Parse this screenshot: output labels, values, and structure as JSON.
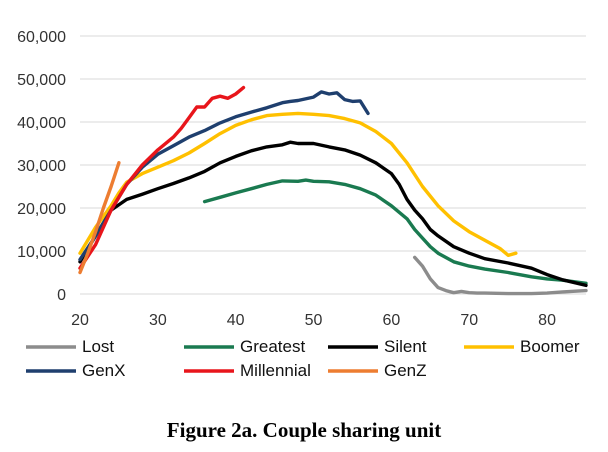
{
  "caption": "Figure 2a. Couple sharing unit",
  "chart_data": {
    "type": "line",
    "title": "",
    "xlabel": "",
    "ylabel": "",
    "xlim": [
      20,
      85
    ],
    "ylim": [
      0,
      60000
    ],
    "x_ticks": [
      "20",
      "30",
      "40",
      "50",
      "60",
      "70",
      "80"
    ],
    "y_ticks": [
      "0",
      "10,000",
      "20,000",
      "30,000",
      "40,000",
      "50,000",
      "60,000"
    ],
    "grid": "horizontal",
    "legend_position": "bottom",
    "series": [
      {
        "name": "Lost",
        "color": "#8c8c8c",
        "x": [
          63,
          64,
          65,
          66,
          67,
          68,
          69,
          70,
          71,
          72,
          75,
          78,
          80,
          82,
          85
        ],
        "y": [
          8500,
          6500,
          3500,
          1500,
          800,
          300,
          600,
          300,
          200,
          200,
          100,
          100,
          200,
          500,
          800
        ]
      },
      {
        "name": "Greatest",
        "color": "#1a7a50",
        "x": [
          36,
          38,
          40,
          42,
          44,
          46,
          48,
          49,
          50,
          52,
          54,
          56,
          58,
          60,
          62,
          63,
          64,
          65,
          66,
          68,
          70,
          72,
          75,
          78,
          80,
          82,
          85
        ],
        "y": [
          21500,
          22500,
          23500,
          24500,
          25500,
          26300,
          26200,
          26500,
          26200,
          26100,
          25500,
          24500,
          23000,
          20500,
          17500,
          15000,
          13000,
          11000,
          9500,
          7500,
          6500,
          5800,
          5000,
          4000,
          3500,
          3200,
          2500
        ]
      },
      {
        "name": "Silent",
        "color": "#000000",
        "x": [
          20,
          22,
          24,
          26,
          28,
          30,
          32,
          34,
          36,
          38,
          40,
          42,
          44,
          46,
          47,
          48,
          50,
          52,
          54,
          56,
          58,
          60,
          61,
          62,
          63,
          64,
          65,
          66,
          68,
          70,
          72,
          75,
          78,
          80,
          82,
          85
        ],
        "y": [
          7500,
          13500,
          19500,
          22000,
          23200,
          24500,
          25700,
          27000,
          28500,
          30500,
          32000,
          33300,
          34200,
          34700,
          35300,
          35000,
          35000,
          34200,
          33500,
          32300,
          30500,
          28000,
          25500,
          22000,
          19500,
          17500,
          15000,
          13500,
          11000,
          9500,
          8200,
          7200,
          6000,
          4500,
          3300,
          2000
        ]
      },
      {
        "name": "Boomer",
        "color": "#ffc000",
        "x": [
          20,
          22,
          24,
          25,
          26,
          28,
          30,
          32,
          34,
          36,
          38,
          40,
          42,
          44,
          46,
          48,
          50,
          52,
          54,
          56,
          58,
          60,
          62,
          64,
          66,
          68,
          70,
          72,
          74,
          75,
          76
        ],
        "y": [
          9500,
          15500,
          20500,
          23500,
          26000,
          28000,
          29500,
          31000,
          32800,
          35000,
          37300,
          39200,
          40500,
          41500,
          41800,
          42000,
          41800,
          41500,
          40800,
          39800,
          37800,
          35000,
          30500,
          25000,
          20500,
          17000,
          14500,
          12500,
          10500,
          9000,
          9500
        ]
      },
      {
        "name": "GenX",
        "color": "#1f3f6e",
        "x": [
          20,
          22,
          24,
          26,
          28,
          30,
          32,
          34,
          36,
          38,
          40,
          42,
          44,
          46,
          47,
          48,
          50,
          51,
          52,
          53,
          54,
          55,
          56,
          57
        ],
        "y": [
          8000,
          13500,
          19500,
          25500,
          29500,
          32500,
          34500,
          36500,
          38000,
          39800,
          41200,
          42300,
          43300,
          44500,
          44800,
          45000,
          45800,
          47000,
          46500,
          46800,
          45200,
          44800,
          44900,
          42000
        ]
      },
      {
        "name": "Millennial",
        "color": "#e8151b",
        "x": [
          20,
          22,
          24,
          26,
          28,
          30,
          32,
          33,
          34,
          35,
          36,
          37,
          38,
          39,
          40,
          41
        ],
        "y": [
          6000,
          11500,
          19500,
          25500,
          30000,
          33500,
          36500,
          38500,
          41000,
          43500,
          43500,
          45500,
          46000,
          45500,
          46500,
          48000
        ]
      },
      {
        "name": "GenZ",
        "color": "#ed7d31",
        "x": [
          20,
          21,
          22,
          23,
          24,
          25
        ],
        "y": [
          5000,
          9500,
          14500,
          20000,
          25000,
          30500
        ]
      }
    ]
  }
}
